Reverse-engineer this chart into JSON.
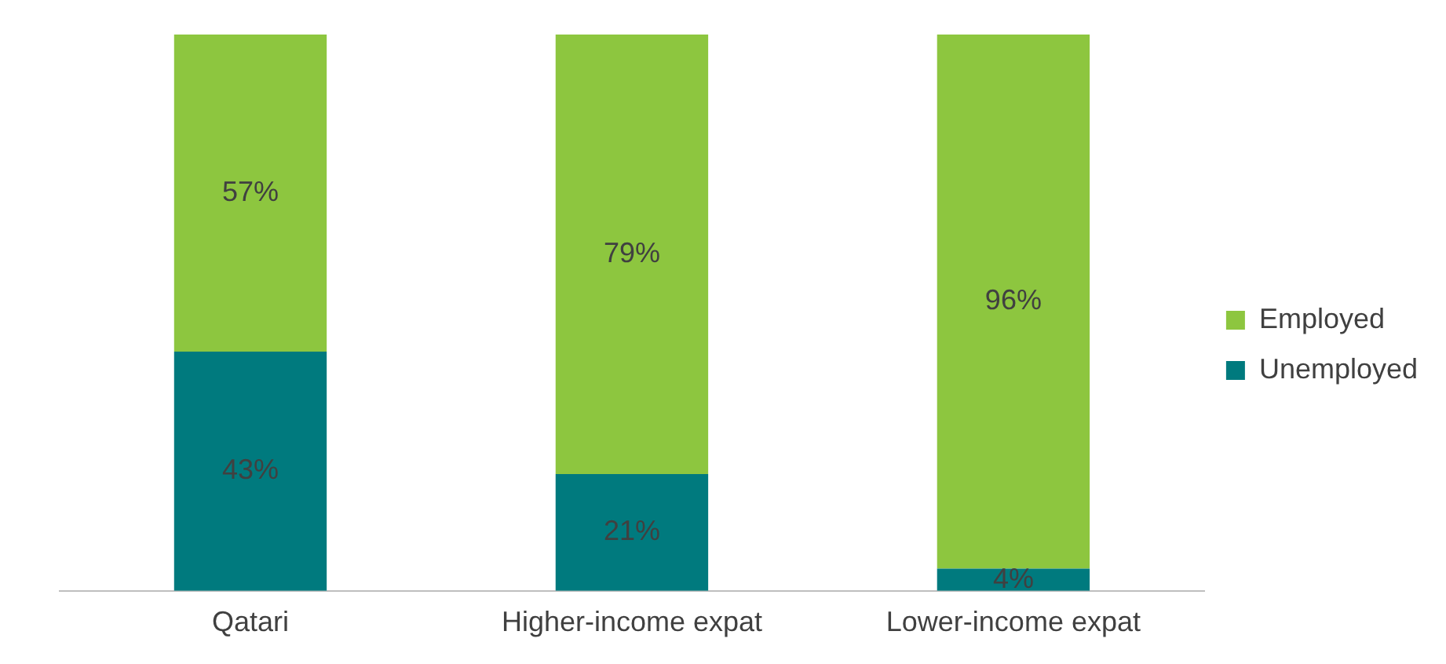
{
  "chart_data": {
    "type": "bar",
    "stacked": true,
    "legend": "right",
    "grid": false,
    "tick_labels": "x",
    "categories": [
      "Qatari",
      "Higher-income expat",
      "Lower-income expat"
    ],
    "series": [
      {
        "name": "Unemployed",
        "color": "#007a7e",
        "values": [
          43,
          21,
          4
        ],
        "value_labels": [
          "43%",
          "21%",
          "4%"
        ]
      },
      {
        "name": "Employed",
        "color": "#8dc63f",
        "values": [
          57,
          79,
          96
        ],
        "value_labels": [
          "57%",
          "79%",
          "96%"
        ]
      }
    ]
  }
}
